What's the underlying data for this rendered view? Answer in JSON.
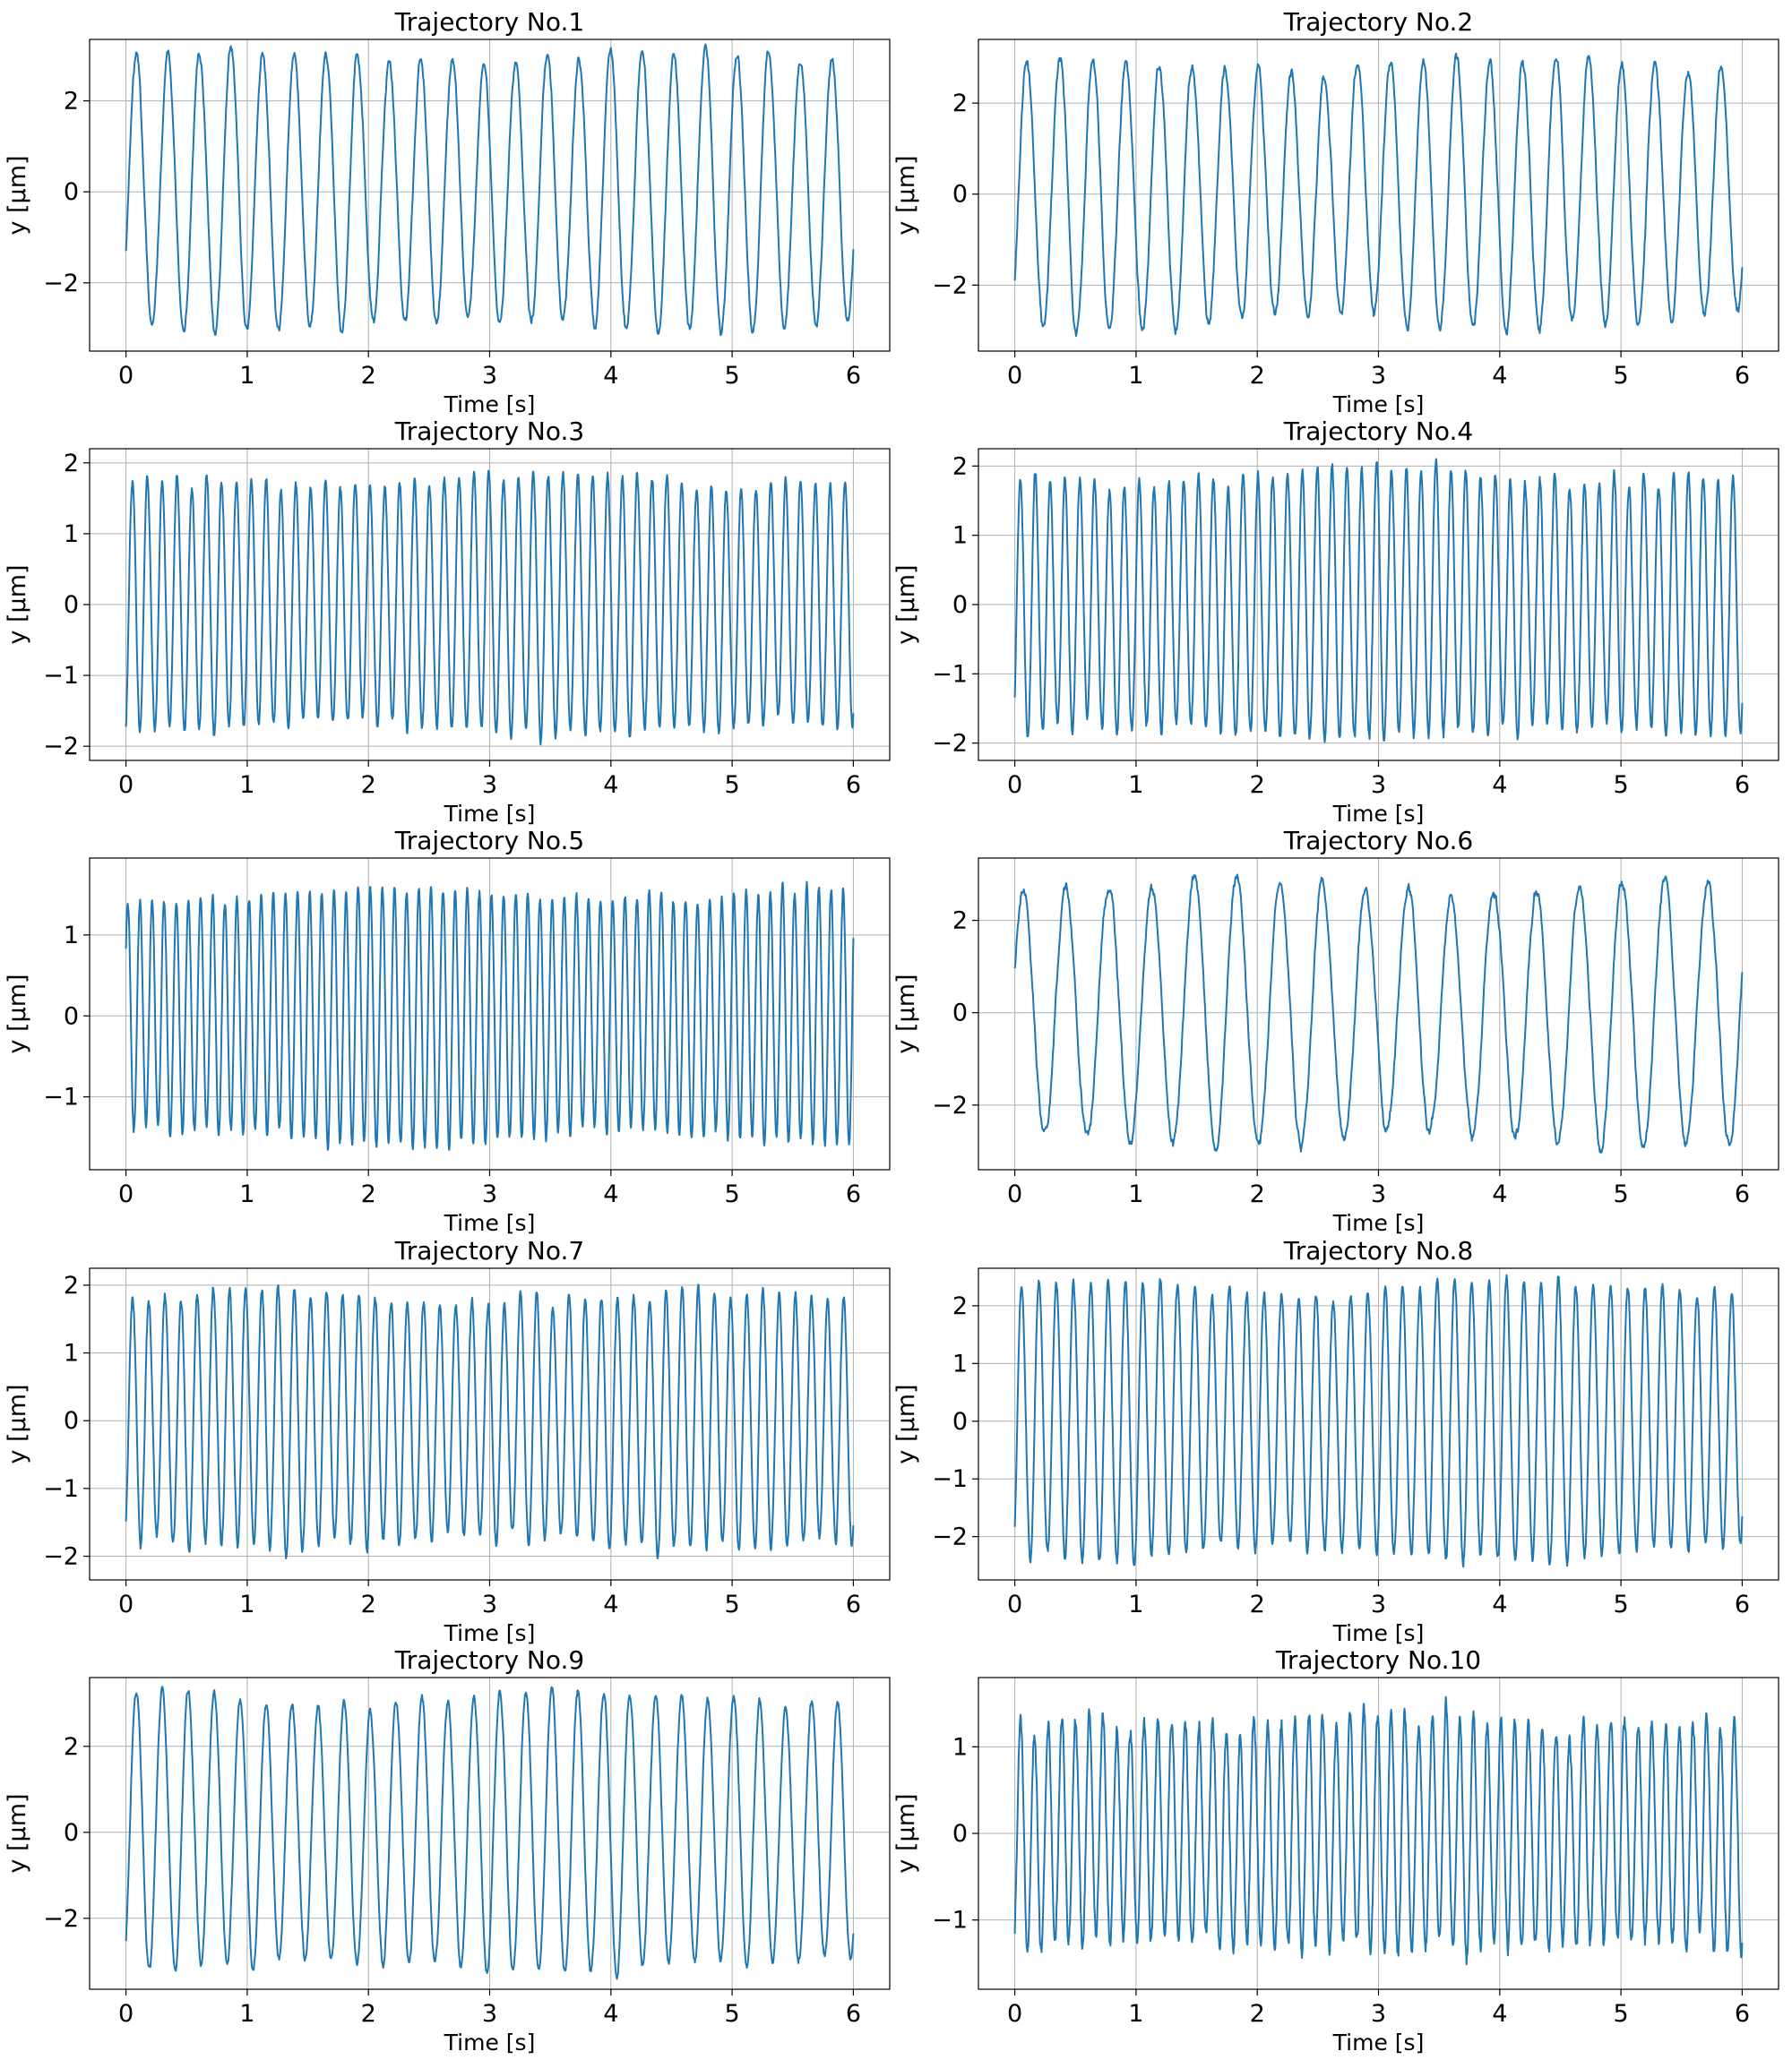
{
  "chart_data": [
    {
      "type": "line",
      "title": "Trajectory No.1",
      "xlabel": "Time [s]",
      "ylabel": "y [μm]",
      "xlim": [
        -0.3,
        6.3
      ],
      "ylim": [
        -3.5,
        3.35
      ],
      "xticks": [
        0,
        1,
        2,
        3,
        4,
        5,
        6
      ],
      "yticks": [
        -2,
        0,
        2
      ],
      "ytick_labels": [
        "−2",
        "0",
        "2"
      ],
      "grid": true,
      "series": [
        {
          "color": "#1f77b4",
          "amplitude": 2.95,
          "cycles": 23,
          "phase_rad": -0.45,
          "noise": 0.12,
          "x_range": [
            0,
            6
          ],
          "samples": 1200
        }
      ]
    },
    {
      "type": "line",
      "title": "Trajectory No.2",
      "xlabel": "Time [s]",
      "ylabel": "y [μm]",
      "xlim": [
        -0.3,
        6.3
      ],
      "ylim": [
        -3.45,
        3.4
      ],
      "xticks": [
        0,
        1,
        2,
        3,
        4,
        5,
        6
      ],
      "yticks": [
        -2,
        0,
        2
      ],
      "ytick_labels": [
        "−2",
        "0",
        "2"
      ],
      "grid": true,
      "series": [
        {
          "color": "#1f77b4",
          "amplitude": 2.85,
          "cycles": 22,
          "phase_rad": -0.7,
          "noise": 0.14,
          "x_range": [
            0,
            6
          ],
          "samples": 1200
        }
      ]
    },
    {
      "type": "line",
      "title": "Trajectory No.3",
      "xlabel": "Time [s]",
      "ylabel": "y [μm]",
      "xlim": [
        -0.3,
        6.3
      ],
      "ylim": [
        -2.2,
        2.2
      ],
      "xticks": [
        0,
        1,
        2,
        3,
        4,
        5,
        6
      ],
      "yticks": [
        -2,
        -1,
        0,
        1,
        2
      ],
      "ytick_labels": [
        "−2",
        "−1",
        "0",
        "1",
        "2"
      ],
      "grid": true,
      "series": [
        {
          "color": "#1f77b4",
          "amplitude": 1.75,
          "cycles": 49,
          "phase_rad": -1.2,
          "noise": 0.08,
          "x_range": [
            0,
            6
          ],
          "samples": 1800
        }
      ]
    },
    {
      "type": "line",
      "title": "Trajectory No.4",
      "xlabel": "Time [s]",
      "ylabel": "y [μm]",
      "xlim": [
        -0.3,
        6.3
      ],
      "ylim": [
        -2.25,
        2.25
      ],
      "xticks": [
        0,
        1,
        2,
        3,
        4,
        5,
        6
      ],
      "yticks": [
        -2,
        -1,
        0,
        1,
        2
      ],
      "ytick_labels": [
        "−2",
        "−1",
        "0",
        "1",
        "2"
      ],
      "grid": true,
      "series": [
        {
          "color": "#1f77b4",
          "amplitude": 1.85,
          "cycles": 49,
          "phase_rad": -0.8,
          "noise": 0.1,
          "x_range": [
            0,
            6
          ],
          "samples": 1800
        }
      ]
    },
    {
      "type": "line",
      "title": "Trajectory No.5",
      "xlabel": "Time [s]",
      "ylabel": "y [μm]",
      "xlim": [
        -0.3,
        6.3
      ],
      "ylim": [
        -1.9,
        1.95
      ],
      "xticks": [
        0,
        1,
        2,
        3,
        4,
        5,
        6
      ],
      "yticks": [
        -1,
        0,
        1
      ],
      "ytick_labels": [
        "−1",
        "0",
        "1"
      ],
      "grid": true,
      "series": [
        {
          "color": "#1f77b4",
          "amplitude": 1.5,
          "cycles": 60,
          "phase_rad": 0.6,
          "noise": 0.07,
          "x_range": [
            0,
            6
          ],
          "samples": 2000
        }
      ]
    },
    {
      "type": "line",
      "title": "Trajectory No.6",
      "xlabel": "Time [s]",
      "ylabel": "y [μm]",
      "xlim": [
        -0.3,
        6.3
      ],
      "ylim": [
        -3.4,
        3.35
      ],
      "xticks": [
        0,
        1,
        2,
        3,
        4,
        5,
        6
      ],
      "yticks": [
        -2,
        0,
        2
      ],
      "ytick_labels": [
        "−2",
        "0",
        "2"
      ],
      "grid": true,
      "series": [
        {
          "color": "#1f77b4",
          "amplitude": 2.75,
          "cycles": 17,
          "phase_rad": 0.35,
          "noise": 0.14,
          "x_range": [
            0,
            6
          ],
          "samples": 1200
        }
      ]
    },
    {
      "type": "line",
      "title": "Trajectory No.7",
      "xlabel": "Time [s]",
      "ylabel": "y [μm]",
      "xlim": [
        -0.3,
        6.3
      ],
      "ylim": [
        -2.35,
        2.25
      ],
      "xticks": [
        0,
        1,
        2,
        3,
        4,
        5,
        6
      ],
      "yticks": [
        -2,
        -1,
        0,
        1,
        2
      ],
      "ytick_labels": [
        "−2",
        "−1",
        "0",
        "1",
        "2"
      ],
      "grid": true,
      "series": [
        {
          "color": "#1f77b4",
          "amplitude": 1.8,
          "cycles": 45,
          "phase_rad": -1.0,
          "noise": 0.09,
          "x_range": [
            0,
            6
          ],
          "samples": 1800
        }
      ]
    },
    {
      "type": "line",
      "title": "Trajectory No.8",
      "xlabel": "Time [s]",
      "ylabel": "y [μm]",
      "xlim": [
        -0.3,
        6.3
      ],
      "ylim": [
        -2.75,
        2.65
      ],
      "xticks": [
        0,
        1,
        2,
        3,
        4,
        5,
        6
      ],
      "yticks": [
        -2,
        -1,
        0,
        1,
        2
      ],
      "ytick_labels": [
        "−2",
        "−1",
        "0",
        "1",
        "2"
      ],
      "grid": true,
      "series": [
        {
          "color": "#1f77b4",
          "amplitude": 2.3,
          "cycles": 42,
          "phase_rad": -0.9,
          "noise": 0.1,
          "x_range": [
            0,
            6
          ],
          "samples": 1800
        }
      ]
    },
    {
      "type": "line",
      "title": "Trajectory No.9",
      "xlabel": "Time [s]",
      "ylabel": "y [μm]",
      "xlim": [
        -0.3,
        6.3
      ],
      "ylim": [
        -3.65,
        3.6
      ],
      "xticks": [
        0,
        1,
        2,
        3,
        4,
        5,
        6
      ],
      "yticks": [
        -2,
        0,
        2
      ],
      "ytick_labels": [
        "−2",
        "0",
        "2"
      ],
      "grid": true,
      "series": [
        {
          "color": "#1f77b4",
          "amplitude": 3.15,
          "cycles": 28,
          "phase_rad": -0.9,
          "noise": 0.11,
          "x_range": [
            0,
            6
          ],
          "samples": 1400
        }
      ]
    },
    {
      "type": "line",
      "title": "Trajectory No.10",
      "xlabel": "Time [s]",
      "ylabel": "y [μm]",
      "xlim": [
        -0.3,
        6.3
      ],
      "ylim": [
        -1.8,
        1.8
      ],
      "xticks": [
        0,
        1,
        2,
        3,
        4,
        5,
        6
      ],
      "yticks": [
        -1,
        0,
        1
      ],
      "ytick_labels": [
        "−1",
        "0",
        "1"
      ],
      "grid": true,
      "series": [
        {
          "color": "#1f77b4",
          "amplitude": 1.3,
          "cycles": 53,
          "phase_rad": -1.1,
          "noise": 0.12,
          "x_range": [
            0,
            6
          ],
          "samples": 1900
        }
      ]
    }
  ]
}
